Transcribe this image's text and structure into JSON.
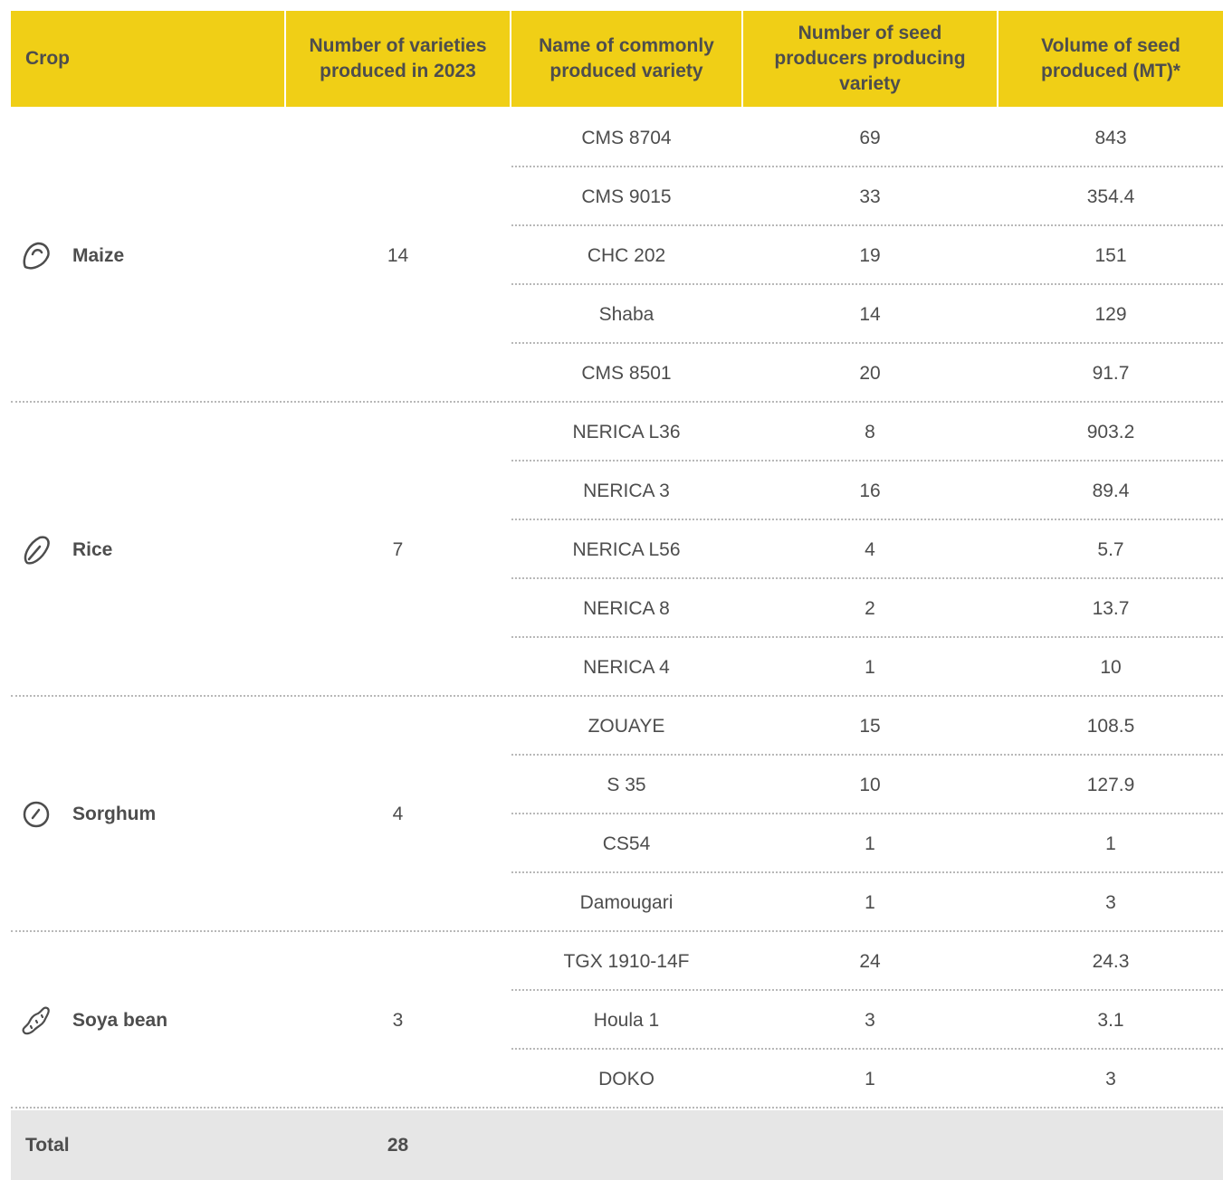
{
  "table": {
    "header": [
      "Crop",
      "Number of varieties produced in 2023",
      "Name of commonly produced variety",
      "Number of seed producers producing variety",
      "Volume of seed produced (MT)*"
    ],
    "groups": [
      {
        "crop": "Maize",
        "count": 14,
        "varieties": [
          {
            "name": "CMS 8704",
            "producers": 69,
            "volume": 843
          },
          {
            "name": "CMS 9015",
            "producers": 33,
            "volume": 354.4
          },
          {
            "name": "CHC 202",
            "producers": 19,
            "volume": 151
          },
          {
            "name": "Shaba",
            "producers": 14,
            "volume": 129
          },
          {
            "name": "CMS 8501",
            "producers": 20,
            "volume": 91.7
          }
        ]
      },
      {
        "crop": "Rice",
        "count": 7,
        "varieties": [
          {
            "name": "NERICA L36",
            "producers": 8,
            "volume": 903.2
          },
          {
            "name": "NERICA 3",
            "producers": 16,
            "volume": 89.4
          },
          {
            "name": "NERICA L56",
            "producers": 4,
            "volume": 5.7
          },
          {
            "name": "NERICA 8",
            "producers": 2,
            "volume": 13.7
          },
          {
            "name": "NERICA 4",
            "producers": 1,
            "volume": 10
          }
        ]
      },
      {
        "crop": "Sorghum",
        "count": 4,
        "varieties": [
          {
            "name": "ZOUAYE",
            "producers": 15,
            "volume": 108.5
          },
          {
            "name": "S 35",
            "producers": 10,
            "volume": 127.9
          },
          {
            "name": "CS54",
            "producers": 1,
            "volume": 1
          },
          {
            "name": "Damougari",
            "producers": 1,
            "volume": 3
          }
        ]
      },
      {
        "crop": "Soya bean",
        "count": 3,
        "varieties": [
          {
            "name": "TGX 1910-14F",
            "producers": 24,
            "volume": 24.3
          },
          {
            "name": "Houla 1",
            "producers": 3,
            "volume": 3.1
          },
          {
            "name": "DOKO",
            "producers": 1,
            "volume": 3
          }
        ]
      }
    ],
    "total": {
      "label": "Total",
      "value": 28
    }
  }
}
